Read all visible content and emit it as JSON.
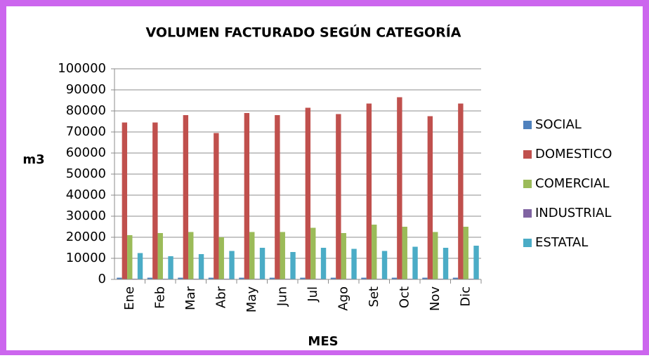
{
  "chart_data": {
    "type": "bar",
    "title": "VOLUMEN FACTURADO SEGÚN CATEGORÍA",
    "x_label": "MES",
    "y_label": "m3",
    "categories": [
      "Ene",
      "Feb",
      "Mar",
      "Abr",
      "May",
      "Jun",
      "Jul",
      "Ago",
      "Set",
      "Oct",
      "Nov",
      "Dic"
    ],
    "series": [
      {
        "name": "SOCIAL",
        "color": "#4f81bd",
        "values": [
          800,
          800,
          800,
          800,
          800,
          800,
          800,
          800,
          800,
          800,
          800,
          800
        ]
      },
      {
        "name": "DOMESTICO",
        "color": "#c0504d",
        "values": [
          74500,
          74500,
          78000,
          69500,
          79000,
          78000,
          81500,
          78500,
          83500,
          86500,
          77500,
          83500
        ]
      },
      {
        "name": "COMERCIAL",
        "color": "#9bbb59",
        "values": [
          21000,
          22000,
          22500,
          20000,
          22500,
          22500,
          24500,
          22000,
          26000,
          25000,
          22500,
          25000
        ]
      },
      {
        "name": "INDUSTRIAL",
        "color": "#8064a2",
        "values": [
          300,
          300,
          300,
          300,
          300,
          300,
          300,
          300,
          300,
          300,
          300,
          300
        ]
      },
      {
        "name": "ESTATAL",
        "color": "#4bacc6",
        "values": [
          12500,
          11000,
          12000,
          13500,
          15000,
          13000,
          15000,
          14500,
          13500,
          15500,
          15000,
          16000
        ]
      }
    ],
    "ylim": [
      0,
      100000
    ],
    "yticks": [
      0,
      10000,
      20000,
      30000,
      40000,
      50000,
      60000,
      70000,
      80000,
      90000,
      100000
    ],
    "grid": true,
    "legend": "right"
  }
}
